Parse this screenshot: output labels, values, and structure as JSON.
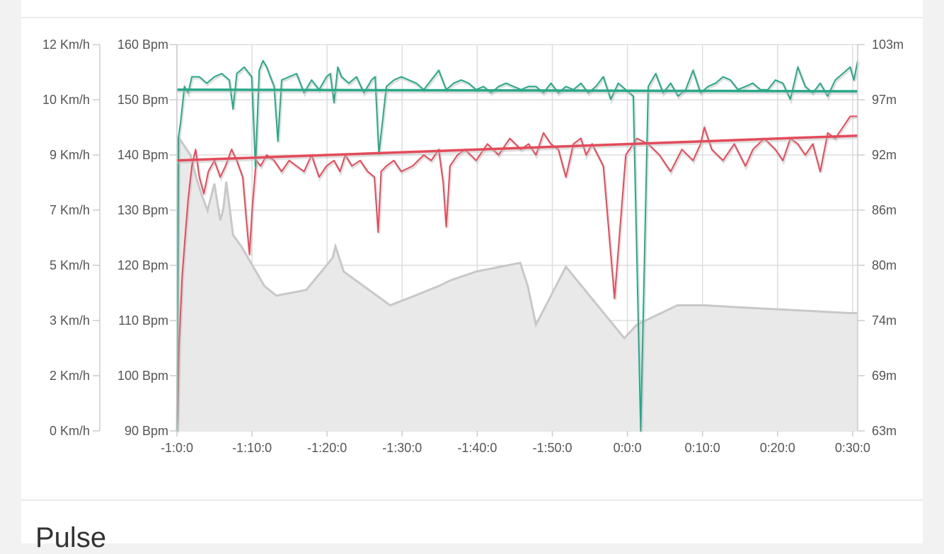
{
  "next_section": {
    "title": "Pulse"
  },
  "chart_data": {
    "type": "line",
    "title": "",
    "x": {
      "tick_labels": [
        "-1:0:0",
        "-1:10:0",
        "-1:20:0",
        "-1:30:0",
        "-1:40:0",
        "-1:50:0",
        "0:0:0",
        "0:10:0",
        "0:20:0",
        "0:30:0"
      ]
    },
    "axes": {
      "speed": {
        "side": "left-outer",
        "ylim": [
          0,
          12
        ],
        "tick_labels": [
          "0 Km/h",
          "2 Km/h",
          "3 Km/h",
          "5 Km/h",
          "7 Km/h",
          "9 Km/h",
          "10 Km/h",
          "12 Km/h"
        ]
      },
      "heart_rate": {
        "side": "left-inner",
        "ylim": [
          90,
          160
        ],
        "tick_labels": [
          "90 Bpm",
          "100 Bpm",
          "110 Bpm",
          "120 Bpm",
          "130 Bpm",
          "140 Bpm",
          "150 Bpm",
          "160 Bpm"
        ]
      },
      "altitude": {
        "side": "right",
        "ylim": [
          63,
          103
        ],
        "tick_labels": [
          "63m",
          "69m",
          "74m",
          "80m",
          "86m",
          "92m",
          "97m",
          "103m"
        ]
      }
    },
    "grid": true,
    "colors": {
      "speed": "#2aa889",
      "heart_rate": "#e34b5b",
      "altitude_fill": "#e9e9e9",
      "altitude_line": "#c8c8c8",
      "grid": "#dddddd"
    },
    "series": [
      {
        "key": "altitude",
        "axis": "altitude",
        "kind": "area",
        "x": [
          0.0,
          0.3,
          1.8,
          2.6,
          3.2,
          4.1,
          5.0,
          5.8,
          6.2,
          6.6,
          7.5,
          8.7,
          10.5,
          11.7,
          13.3,
          17.3,
          20.8,
          21.2,
          22.3,
          28.5,
          31.8,
          35.0,
          36.6,
          40.0,
          45.9,
          46.9,
          48.0,
          52.0,
          59.8,
          61.5,
          66.9,
          70.6,
          75.0,
          80.0,
          85.0,
          90.0,
          91.0
        ],
        "y": [
          63,
          93.3,
          91.6,
          89.2,
          87.7,
          85.8,
          88.6,
          84.8,
          85.9,
          88.8,
          83.3,
          82.0,
          79.6,
          78.0,
          77.0,
          77.6,
          80.9,
          82.1,
          79.5,
          76.0,
          77.0,
          78.0,
          78.6,
          79.5,
          80.4,
          78.0,
          74.0,
          80.0,
          72.6,
          74.0,
          76.0,
          76.0,
          75.8,
          75.6,
          75.4,
          75.2,
          75.2
        ]
      },
      {
        "key": "heart_rate",
        "axis": "heart_rate",
        "kind": "line",
        "x": [
          0.0,
          0.1,
          0.3,
          0.7,
          1.2,
          1.5,
          2.0,
          2.5,
          3.0,
          3.6,
          4.2,
          5.0,
          5.8,
          6.5,
          7.3,
          8.0,
          8.8,
          9.3,
          9.7,
          10.1,
          10.6,
          11.2,
          12.0,
          13.0,
          14.0,
          15.0,
          16.0,
          17.0,
          18.0,
          19.0,
          20.0,
          21.0,
          21.8,
          22.5,
          23.4,
          24.5,
          25.5,
          26.4,
          26.9,
          27.3,
          28.0,
          29.0,
          30.0,
          31.5,
          33.0,
          34.0,
          35.0,
          35.6,
          36.0,
          36.5,
          37.5,
          38.5,
          40.0,
          41.5,
          43.0,
          44.5,
          46.0,
          47.0,
          48.0,
          49.0,
          50.0,
          51.0,
          52.0,
          53.0,
          54.0,
          54.7,
          55.5,
          57.0,
          58.5,
          60.0,
          61.5,
          63.0,
          64.5,
          66.0,
          67.5,
          69.0,
          70.0,
          70.5,
          71.5,
          73.0,
          74.5,
          76.0,
          77.0,
          78.5,
          80.0,
          81.0,
          82.0,
          83.0,
          84.0,
          85.0,
          86.0,
          87.0,
          88.0,
          89.0,
          90.0,
          91.0
        ],
        "y": [
          90,
          93,
          106,
          118,
          127,
          132,
          138,
          141,
          136,
          133,
          137,
          139,
          136,
          138,
          141,
          139,
          136,
          128,
          122,
          131,
          139,
          138,
          140,
          139,
          137,
          139,
          138,
          137,
          140,
          136,
          138,
          139,
          137,
          140,
          138,
          139,
          137,
          136,
          126,
          137,
          138,
          139,
          137,
          138,
          140,
          139,
          141,
          135,
          127,
          138,
          140,
          141,
          139,
          142,
          140,
          143,
          141,
          142,
          140,
          144,
          142,
          141,
          136,
          142,
          143,
          140,
          142,
          138,
          114,
          140,
          143,
          142,
          140,
          137,
          141,
          139,
          142,
          145,
          141,
          139,
          142,
          138,
          141,
          143,
          141,
          139,
          143,
          142,
          140,
          142,
          137,
          144,
          143,
          145,
          147,
          147
        ]
      },
      {
        "key": "speed",
        "axis": "speed",
        "kind": "line",
        "x": [
          0.0,
          0.2,
          0.5,
          1.0,
          1.5,
          2.0,
          3.0,
          4.0,
          5.0,
          6.0,
          7.0,
          7.5,
          8.0,
          9.0,
          10.0,
          10.5,
          11.0,
          11.5,
          12.0,
          12.5,
          13.0,
          13.5,
          14.0,
          15.0,
          16.0,
          17.0,
          18.0,
          19.0,
          20.0,
          20.5,
          21.0,
          21.5,
          22.0,
          23.0,
          24.0,
          25.0,
          26.0,
          26.5,
          27.0,
          28.0,
          29.0,
          30.0,
          31.0,
          32.0,
          33.0,
          34.0,
          35.0,
          36.0,
          37.0,
          38.0,
          39.0,
          40.0,
          41.0,
          42.0,
          43.0,
          44.0,
          45.0,
          46.0,
          47.0,
          48.0,
          49.0,
          50.0,
          51.0,
          52.0,
          53.0,
          54.0,
          55.0,
          56.0,
          57.0,
          58.0,
          59.0,
          60.0,
          61.0,
          62.0,
          63.0,
          64.0,
          65.0,
          66.0,
          67.0,
          68.0,
          69.0,
          70.0,
          71.0,
          72.0,
          73.0,
          74.0,
          75.0,
          76.0,
          77.0,
          78.0,
          79.0,
          80.0,
          81.0,
          82.0,
          83.0,
          84.0,
          85.0,
          86.0,
          87.0,
          88.0,
          89.0,
          90.0,
          90.5,
          91.0
        ],
        "y": [
          0.0,
          9.1,
          9.6,
          10.7,
          10.5,
          11.0,
          11.0,
          10.8,
          11.0,
          11.1,
          10.9,
          10.0,
          11.1,
          11.3,
          11.0,
          8.2,
          11.2,
          11.5,
          11.3,
          11.0,
          10.7,
          9.0,
          10.9,
          11.0,
          11.1,
          10.5,
          10.9,
          10.6,
          11.0,
          11.1,
          10.2,
          11.3,
          11.0,
          10.8,
          11.0,
          10.5,
          10.9,
          11.0,
          8.6,
          10.7,
          10.9,
          11.0,
          10.9,
          10.8,
          10.6,
          10.9,
          11.2,
          10.6,
          10.8,
          10.9,
          10.8,
          10.6,
          10.7,
          10.5,
          10.7,
          10.8,
          10.7,
          10.6,
          10.7,
          10.7,
          10.5,
          10.8,
          10.5,
          10.7,
          10.6,
          10.8,
          10.5,
          10.7,
          11.0,
          10.3,
          10.8,
          10.6,
          10.4,
          0.0,
          10.7,
          11.1,
          10.5,
          10.8,
          10.4,
          10.6,
          11.2,
          10.5,
          10.7,
          10.8,
          11.0,
          10.9,
          10.6,
          10.7,
          10.8,
          10.6,
          10.6,
          10.9,
          10.8,
          10.3,
          11.3,
          10.7,
          10.5,
          10.8,
          10.4,
          10.9,
          11.1,
          11.3,
          10.9,
          11.5
        ]
      },
      {
        "key": "hr_trend",
        "axis": "heart_rate",
        "kind": "trend",
        "x": [
          0,
          91
        ],
        "y": [
          139.0,
          143.5
        ]
      },
      {
        "key": "speed_trend",
        "axis": "speed",
        "kind": "trend",
        "x": [
          0,
          91
        ],
        "y": [
          10.6,
          10.55
        ]
      }
    ],
    "x_domain": [
      0,
      91
    ]
  }
}
